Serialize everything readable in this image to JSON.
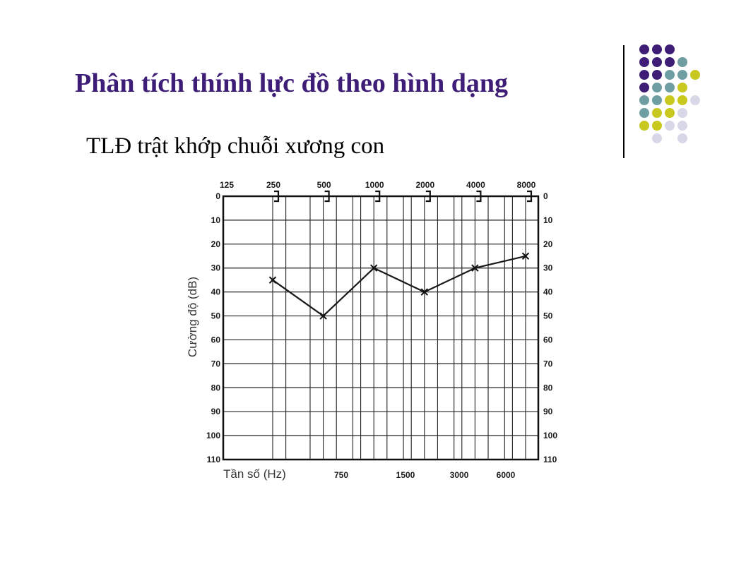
{
  "slide": {
    "title": "Phân tích thính lực đồ theo hình dạng",
    "subtitle": "TLĐ trật khớp chuỗi xương con"
  },
  "decoration": {
    "colors": {
      "purple": "#3d1d75",
      "teal": "#6f9ea2",
      "yellow": "#c8c81e",
      "lavender": "#d7d7e7"
    },
    "dot_grid": [
      [
        "purple",
        "purple",
        "purple",
        "",
        ""
      ],
      [
        "purple",
        "purple",
        "purple",
        "teal",
        ""
      ],
      [
        "purple",
        "purple",
        "teal",
        "teal",
        "yellow"
      ],
      [
        "purple",
        "teal",
        "teal",
        "yellow",
        ""
      ],
      [
        "teal",
        "teal",
        "yellow",
        "yellow",
        "lavender"
      ],
      [
        "teal",
        "yellow",
        "yellow",
        "lavender",
        ""
      ],
      [
        "yellow",
        "yellow",
        "lavender",
        "lavender",
        ""
      ],
      [
        "",
        "lavender",
        "",
        "lavender",
        ""
      ]
    ]
  },
  "chart_data": {
    "type": "line",
    "xlabel": "Tần số (Hz)",
    "ylabel": "Cường độ (dB)",
    "top_frequency_labels": [
      "125",
      "250",
      "500",
      "1000",
      "2000",
      "4000",
      "8000"
    ],
    "bottom_frequency_labels": [
      "750",
      "1500",
      "3000",
      "6000"
    ],
    "y_ticks": [
      0,
      10,
      20,
      30,
      40,
      50,
      60,
      70,
      80,
      90,
      100,
      110
    ],
    "y_tick_labels": [
      "0",
      "10",
      "20",
      "30",
      "40",
      "50",
      "60",
      "70",
      "80",
      "90",
      "100",
      "110"
    ],
    "ylim": [
      0,
      110
    ],
    "y_inverted": true,
    "grid": true,
    "bone_conduction_markers_at": [
      "250",
      "500",
      "1000",
      "2000",
      "4000",
      "8000"
    ],
    "series": [
      {
        "marker": "x",
        "x": [
          250,
          500,
          1000,
          2000,
          4000,
          8000
        ],
        "y": [
          35,
          50,
          30,
          40,
          30,
          25
        ]
      }
    ]
  }
}
